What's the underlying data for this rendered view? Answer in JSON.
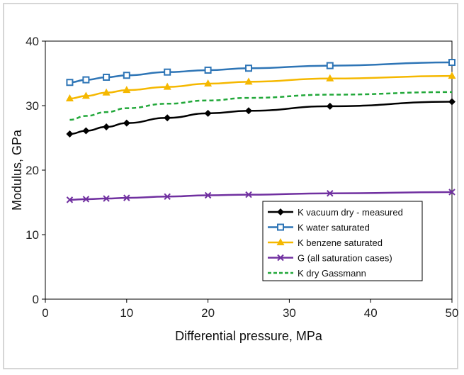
{
  "chart_data": {
    "type": "line",
    "xlabel": "Differential pressure, MPa",
    "ylabel": "Modulus, GPa",
    "xlim": [
      0,
      50
    ],
    "ylim": [
      0,
      40
    ],
    "xticks": [
      0,
      10,
      20,
      30,
      40,
      50
    ],
    "yticks": [
      0,
      10,
      20,
      30,
      40
    ],
    "xtick_labels": [
      "0",
      "10",
      "20",
      "30",
      "40",
      "50"
    ],
    "ytick_labels": [
      "0",
      "10",
      "20",
      "30",
      "40"
    ],
    "grid": false,
    "legend_position": "bottom-right",
    "series": [
      {
        "name": "K vacuum dry - measured",
        "color": "#000000",
        "marker": "diamond",
        "dashed": false,
        "x": [
          3,
          5,
          7.5,
          10,
          15,
          20,
          25,
          35,
          50
        ],
        "y": [
          25.6,
          26.1,
          26.7,
          27.3,
          28.1,
          28.8,
          29.2,
          29.9,
          30.6
        ]
      },
      {
        "name": "K water saturated",
        "color": "#2e75b6",
        "marker": "square",
        "dashed": false,
        "x": [
          3,
          5,
          7.5,
          10,
          15,
          20,
          25,
          35,
          50
        ],
        "y": [
          33.6,
          34.0,
          34.4,
          34.7,
          35.2,
          35.5,
          35.8,
          36.2,
          36.7
        ]
      },
      {
        "name": "K benzene saturated",
        "color": "#f5b800",
        "marker": "triangle",
        "dashed": false,
        "x": [
          3,
          5,
          7.5,
          10,
          15,
          20,
          25,
          35,
          50
        ],
        "y": [
          31.1,
          31.5,
          32.0,
          32.4,
          32.9,
          33.4,
          33.7,
          34.2,
          34.6
        ]
      },
      {
        "name": "G (all saturation cases)",
        "color": "#7030a0",
        "marker": "x",
        "dashed": false,
        "x": [
          3,
          5,
          7.5,
          10,
          15,
          20,
          25,
          35,
          50
        ],
        "y": [
          15.4,
          15.5,
          15.6,
          15.7,
          15.9,
          16.1,
          16.2,
          16.4,
          16.6
        ]
      },
      {
        "name": "K dry Gassmann",
        "color": "#22a83a",
        "marker": "none",
        "dashed": true,
        "x": [
          3,
          5,
          7.5,
          10,
          15,
          20,
          25,
          35,
          50
        ],
        "y": [
          27.8,
          28.4,
          29.0,
          29.6,
          30.3,
          30.8,
          31.2,
          31.7,
          32.1
        ]
      }
    ]
  }
}
